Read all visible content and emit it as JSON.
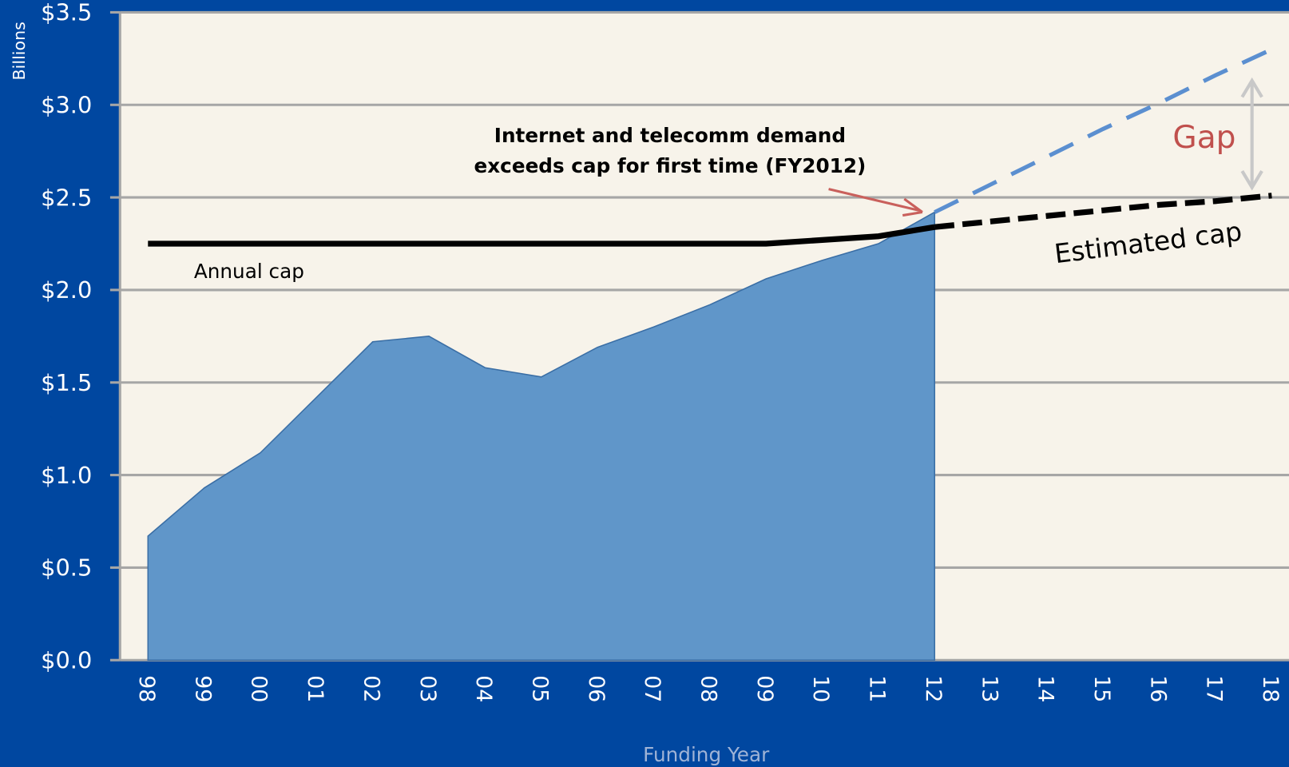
{
  "chart_data": {
    "type": "area",
    "x_label": "Funding Year",
    "y_label": "Billions",
    "categories": [
      "98",
      "99",
      "00",
      "01",
      "02",
      "03",
      "04",
      "05",
      "06",
      "07",
      "08",
      "09",
      "10",
      "11",
      "12",
      "13",
      "14",
      "15",
      "16",
      "17",
      "18"
    ],
    "series": [
      {
        "color": "#6096c9",
        "style": "area",
        "values": [
          0.67,
          0.93,
          1.12,
          1.42,
          1.72,
          1.75,
          1.58,
          1.53,
          1.69,
          1.8,
          1.92,
          2.06,
          2.16,
          2.25,
          2.42,
          null,
          null,
          null,
          null,
          null,
          null
        ]
      },
      {
        "color": "#5b8fd0",
        "style": "dashed",
        "values": [
          null,
          null,
          null,
          null,
          null,
          null,
          null,
          null,
          null,
          null,
          null,
          null,
          null,
          null,
          2.42,
          2.57,
          2.72,
          2.87,
          3.01,
          3.16,
          3.3
        ]
      },
      {
        "name": "Annual cap",
        "color": "#000000",
        "style": "line",
        "values": [
          2.25,
          2.25,
          2.25,
          2.25,
          2.25,
          2.25,
          2.25,
          2.25,
          2.25,
          2.25,
          2.25,
          2.25,
          2.27,
          2.29,
          2.34,
          null,
          null,
          null,
          null,
          null,
          null
        ]
      },
      {
        "name": "Estimated cap",
        "color": "#000000",
        "style": "dashed",
        "values": [
          null,
          null,
          null,
          null,
          null,
          null,
          null,
          null,
          null,
          null,
          null,
          null,
          null,
          null,
          2.34,
          2.37,
          2.4,
          2.43,
          2.46,
          2.48,
          2.51
        ]
      }
    ],
    "ylim": [
      0,
      3.5
    ],
    "yticks": [
      {
        "value": 0,
        "label": "$0.0"
      },
      {
        "value": 0.5,
        "label": "$0.5"
      },
      {
        "value": 1,
        "label": "$1.0"
      },
      {
        "value": 1.5,
        "label": "$1.5"
      },
      {
        "value": 2,
        "label": "$2.0"
      },
      {
        "value": 2.5,
        "label": "$2.5"
      },
      {
        "value": 3,
        "label": "$3.0"
      },
      {
        "value": 3.5,
        "label": "$3.5"
      }
    ],
    "grid": true,
    "annotations": [
      "Internet and telecomm demand",
      "exceeds cap for first time (FY2012)",
      "Gap"
    ]
  }
}
